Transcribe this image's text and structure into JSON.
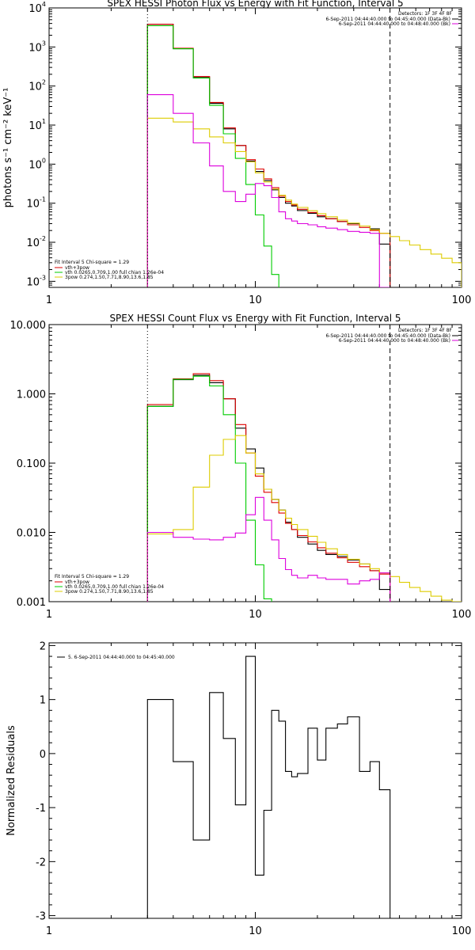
{
  "chart_data": [
    {
      "type": "line",
      "title": "SPEX HESSI Photon Flux vs Energy with Fit Function, Interval 5",
      "ylabel": "photons s⁻¹ cm⁻² keV⁻¹",
      "xscale": "log",
      "yscale": "log",
      "xlim": [
        1,
        100
      ],
      "ylim": [
        0.0007,
        10000
      ],
      "x_ticks": [
        "1",
        "10",
        "100"
      ],
      "y_ticks": [
        {
          "v": 10000,
          "b": "10",
          "e": "4"
        },
        {
          "v": 1000,
          "b": "10",
          "e": "3"
        },
        {
          "v": 100,
          "b": "10",
          "e": "2"
        },
        {
          "v": 10,
          "b": "10",
          "e": "1"
        },
        {
          "v": 1,
          "b": "10",
          "e": "0"
        },
        {
          "v": 0.1,
          "b": "10",
          "e": "-1"
        },
        {
          "v": 0.01,
          "b": "10",
          "e": "-2"
        },
        {
          "v": 0.001,
          "b": "10",
          "e": "-3"
        }
      ],
      "vlines": [
        {
          "x": 3,
          "style": "dotted"
        },
        {
          "x": 45,
          "style": "dashed"
        }
      ],
      "legend_topright": {
        "header": "Detectors: 1F 3F 4F 8F",
        "items": [
          {
            "text": "6-Sep-2011 04:44:40.000 to 04:45:40.000 (Data-Bk)",
            "color": "#000000"
          },
          {
            "text": "6-Sep-2011 04:44:40.000 to 04:48:40.000 (Bk)",
            "color": "#dd00dd"
          }
        ]
      },
      "legend_bottomleft": {
        "header": "Fit Interval 5    Chi-square = 1.29",
        "items": [
          {
            "text": "vth+3pow",
            "color": "#dd0000"
          },
          {
            "text": "vth 0.0265,0.709,1.00  full chian 1.26e-04",
            "color": "#00cc00"
          },
          {
            "text": "3pow 0.274,1.50,7.71,8.90,13.6,1.85",
            "color": "#ddcc00"
          }
        ]
      },
      "series": [
        {
          "name": "Data-Bk",
          "color": "#000000",
          "edges": [
            3,
            4,
            5,
            6,
            7,
            8,
            9,
            10,
            11,
            12,
            13,
            14,
            15,
            16,
            18,
            20,
            22,
            25,
            28,
            32,
            36,
            40,
            45
          ],
          "values": [
            3800,
            900,
            170,
            36,
            8,
            3,
            1.2,
            0.65,
            0.38,
            0.22,
            0.14,
            0.1,
            0.085,
            0.065,
            0.055,
            0.045,
            0.04,
            0.034,
            0.03,
            0.026,
            0.022,
            0.009
          ]
        },
        {
          "name": "vth+3pow",
          "color": "#dd0000",
          "edges": [
            3,
            4,
            5,
            6,
            7,
            8,
            9,
            10,
            11,
            12,
            13,
            14,
            15,
            16,
            18,
            20,
            22,
            25,
            28,
            32,
            36,
            40,
            45
          ],
          "values": [
            3800,
            930,
            175,
            38,
            8.5,
            3,
            1.3,
            0.75,
            0.42,
            0.25,
            0.15,
            0.11,
            0.09,
            0.07,
            0.058,
            0.048,
            0.04,
            0.034,
            0.028,
            0.024,
            0.02,
            0.017
          ]
        },
        {
          "name": "vth",
          "color": "#00cc00",
          "edges": [
            3,
            4,
            5,
            6,
            7,
            8,
            9,
            10,
            11,
            12,
            13
          ],
          "values": [
            3500,
            900,
            160,
            32,
            6,
            1.4,
            0.3,
            0.05,
            0.008,
            0.0015
          ]
        },
        {
          "name": "3pow",
          "color": "#ddcc00",
          "edges": [
            3,
            4,
            5,
            6,
            7,
            8,
            9,
            10,
            11,
            12,
            13,
            14,
            15,
            16,
            18,
            20,
            22,
            25,
            28,
            32,
            36,
            40,
            45,
            50,
            56,
            63,
            71,
            80,
            90,
            100
          ],
          "values": [
            15,
            12,
            8,
            5,
            3.5,
            2.1,
            1.15,
            0.6,
            0.35,
            0.23,
            0.16,
            0.12,
            0.095,
            0.078,
            0.064,
            0.054,
            0.045,
            0.037,
            0.031,
            0.026,
            0.021,
            0.017,
            0.014,
            0.011,
            0.0085,
            0.0065,
            0.005,
            0.0039,
            0.003
          ]
        },
        {
          "name": "Bk",
          "color": "#dd00dd",
          "edges": [
            3,
            4,
            5,
            6,
            7,
            8,
            9,
            10,
            11,
            12,
            13,
            14,
            15,
            16,
            18,
            20,
            22,
            25,
            28,
            32,
            36,
            40,
            45
          ],
          "values": [
            60,
            20,
            3.5,
            0.9,
            0.2,
            0.11,
            0.17,
            0.32,
            0.28,
            0.14,
            0.06,
            0.04,
            0.035,
            0.03,
            0.028,
            0.025,
            0.023,
            0.021,
            0.019,
            0.018,
            0.017,
            0.0005
          ]
        }
      ]
    },
    {
      "type": "line",
      "title": "SPEX HESSI Count Flux vs Energy with Fit Function, Interval 5",
      "ylabel": "",
      "xscale": "log",
      "yscale": "log",
      "xlim": [
        1,
        100
      ],
      "ylim": [
        0.001,
        10
      ],
      "x_ticks": [
        "1",
        "10",
        "100"
      ],
      "y_ticks": [
        {
          "v": 10,
          "t": "10.000"
        },
        {
          "v": 1,
          "t": "1.000"
        },
        {
          "v": 0.1,
          "t": "0.100"
        },
        {
          "v": 0.01,
          "t": "0.010"
        },
        {
          "v": 0.001,
          "t": "0.001"
        }
      ],
      "vlines": [
        {
          "x": 3,
          "style": "dotted"
        },
        {
          "x": 45,
          "style": "dashed"
        }
      ],
      "legend_topright": {
        "header": "Detectors: 1F 3F 4F 8F",
        "items": [
          {
            "text": "6-Sep-2011 04:44:40.000 to 04:45:40.000 (Data-Bk)",
            "color": "#000000"
          },
          {
            "text": "6-Sep-2011 04:44:40.000 to 04:48:40.000 (Bk)",
            "color": "#dd00dd"
          }
        ]
      },
      "legend_bottomleft": {
        "header": "Fit Interval 5    Chi-square = 1.29",
        "items": [
          {
            "text": "vth+3pow",
            "color": "#dd0000"
          },
          {
            "text": "vth 0.0265,0.709,1.00  full chian 1.26e-04",
            "color": "#00cc00"
          },
          {
            "text": "3pow 0.274,1.50,7.71,8.90,13.6,1.85",
            "color": "#ddcc00"
          }
        ]
      },
      "series": [
        {
          "name": "Data-Bk",
          "color": "#000000",
          "edges": [
            3,
            4,
            5,
            6,
            7,
            8,
            9,
            10,
            11,
            12,
            13,
            14,
            15,
            16,
            18,
            20,
            22,
            25,
            28,
            32,
            36,
            40,
            45
          ],
          "values": [
            0.66,
            1.6,
            1.85,
            1.45,
            0.85,
            0.32,
            0.16,
            0.085,
            0.042,
            0.03,
            0.021,
            0.014,
            0.011,
            0.0085,
            0.0068,
            0.0055,
            0.0048,
            0.0045,
            0.004,
            0.0035,
            0.0028,
            0.0015
          ]
        },
        {
          "name": "vth+3pow",
          "color": "#dd0000",
          "edges": [
            3,
            4,
            5,
            6,
            7,
            8,
            9,
            10,
            11,
            12,
            13,
            14,
            15,
            16,
            18,
            20,
            22,
            25,
            28,
            32,
            36,
            40,
            45
          ],
          "values": [
            0.7,
            1.65,
            1.95,
            1.55,
            0.85,
            0.36,
            0.14,
            0.065,
            0.038,
            0.027,
            0.019,
            0.0135,
            0.011,
            0.009,
            0.0073,
            0.006,
            0.005,
            0.0043,
            0.0037,
            0.0032,
            0.0028,
            0.0025
          ]
        },
        {
          "name": "vth",
          "color": "#00cc00",
          "edges": [
            3,
            4,
            5,
            6,
            7,
            8,
            9,
            10,
            11,
            12
          ],
          "values": [
            0.66,
            1.62,
            1.8,
            1.3,
            0.5,
            0.1,
            0.015,
            0.0034,
            0.0011
          ]
        },
        {
          "name": "3pow",
          "color": "#ddcc00",
          "edges": [
            3,
            4,
            5,
            6,
            7,
            8,
            9,
            10,
            11,
            12,
            13,
            14,
            15,
            16,
            18,
            20,
            22,
            25,
            28,
            32,
            36,
            40,
            45,
            50,
            56,
            63,
            71,
            80,
            90,
            100
          ],
          "values": [
            0.0095,
            0.011,
            0.045,
            0.13,
            0.22,
            0.25,
            0.14,
            0.07,
            0.042,
            0.03,
            0.021,
            0.016,
            0.013,
            0.011,
            0.0088,
            0.0072,
            0.0058,
            0.0048,
            0.0041,
            0.0035,
            0.003,
            0.0026,
            0.0023,
            0.0019,
            0.0016,
            0.0014,
            0.0012,
            0.00105,
            0.0009
          ]
        },
        {
          "name": "Bk",
          "color": "#dd00dd",
          "edges": [
            3,
            4,
            5,
            6,
            7,
            8,
            9,
            10,
            11,
            12,
            13,
            14,
            15,
            16,
            18,
            20,
            22,
            25,
            28,
            32,
            36,
            40,
            45
          ],
          "values": [
            0.01,
            0.0085,
            0.008,
            0.0078,
            0.0085,
            0.0098,
            0.018,
            0.032,
            0.015,
            0.0078,
            0.0042,
            0.0029,
            0.0024,
            0.0022,
            0.0024,
            0.0022,
            0.0021,
            0.0021,
            0.0018,
            0.002,
            0.0021,
            0.0026
          ]
        }
      ]
    },
    {
      "type": "line",
      "title": "",
      "ylabel": "Normalized Residuals",
      "xscale": "log",
      "yscale": "linear",
      "xlim": [
        1,
        100
      ],
      "ylim": [
        -3.05,
        2.05
      ],
      "x_ticks": [
        "1",
        "10",
        "100"
      ],
      "y_ticks": [
        {
          "v": 2,
          "t": "2"
        },
        {
          "v": 1,
          "t": "1"
        },
        {
          "v": 0,
          "t": "0"
        },
        {
          "v": -1,
          "t": "-1"
        },
        {
          "v": -2,
          "t": "-2"
        },
        {
          "v": -3,
          "t": "-3"
        }
      ],
      "vlines": [],
      "legend_topleft": {
        "items": [
          {
            "text": "5. 6-Sep-2011 04:44:40.000 to 04:45:40.000",
            "color": "#000000"
          }
        ]
      },
      "series": [
        {
          "name": "Residuals",
          "color": "#000000",
          "edges": [
            3,
            4,
            5,
            6,
            7,
            8,
            9,
            10,
            11,
            12,
            13,
            14,
            15,
            16,
            18,
            20,
            22,
            25,
            28,
            32,
            36,
            40,
            45
          ],
          "values": [
            1.0,
            -0.15,
            -1.6,
            1.13,
            0.28,
            -0.95,
            1.8,
            -2.25,
            -1.05,
            0.8,
            0.6,
            -0.33,
            -0.43,
            -0.37,
            0.47,
            -0.12,
            0.47,
            0.55,
            0.68,
            -0.33,
            -0.15,
            -0.67
          ]
        }
      ]
    }
  ]
}
